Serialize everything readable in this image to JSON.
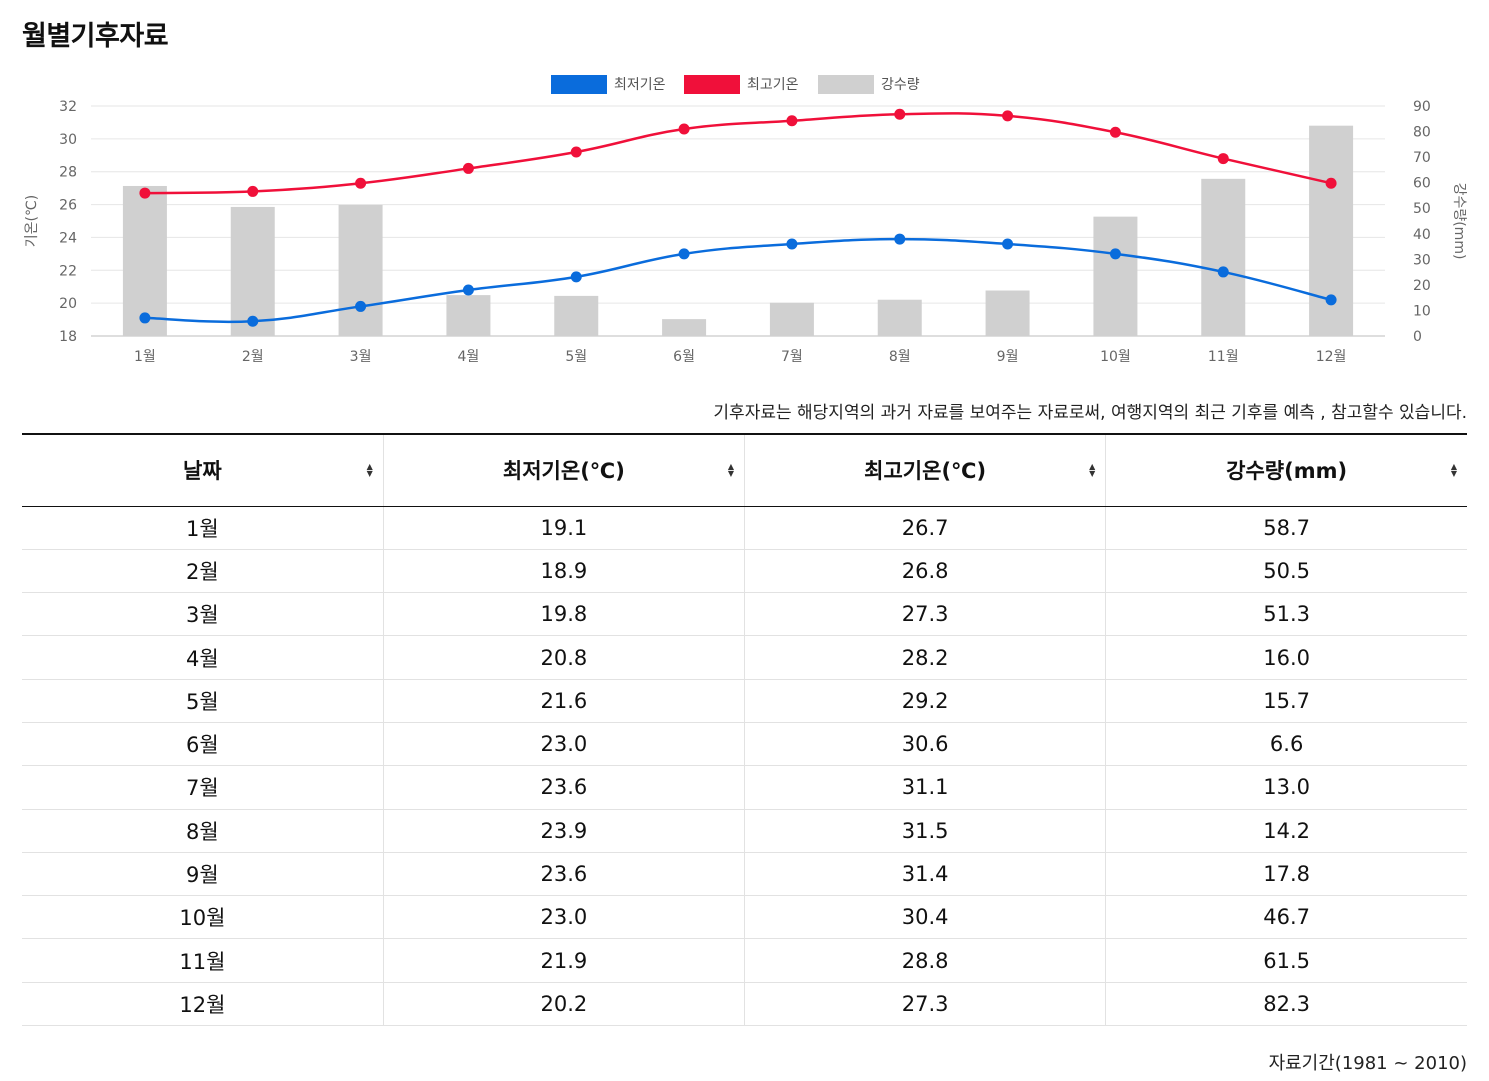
{
  "page": {
    "title": "월별기후자료",
    "note": "기후자료는 해당지역의 과거 자료를 보여주는 자료로써, 여행지역의 최근 기후를 예측 , 참고할수 있습니다.",
    "period": "자료기간(1981 ~ 2010)"
  },
  "chart_data": {
    "type": "bar+line",
    "categories": [
      "1월",
      "2월",
      "3월",
      "4월",
      "5월",
      "6월",
      "7월",
      "8월",
      "9월",
      "10월",
      "11월",
      "12월"
    ],
    "series": [
      {
        "name": "최저기온",
        "kind": "line",
        "axis": "left",
        "color": "#0a6cdc",
        "values": [
          19.1,
          18.9,
          19.8,
          20.8,
          21.6,
          23.0,
          23.6,
          23.9,
          23.6,
          23.0,
          21.9,
          20.2
        ]
      },
      {
        "name": "최고기온",
        "kind": "line",
        "axis": "left",
        "color": "#f0103a",
        "values": [
          26.7,
          26.8,
          27.3,
          28.2,
          29.2,
          30.6,
          31.1,
          31.5,
          31.4,
          30.4,
          28.8,
          27.3
        ]
      },
      {
        "name": "강수량",
        "kind": "bar",
        "axis": "right",
        "color": "#d0d0d0",
        "values": [
          58.7,
          50.5,
          51.3,
          16.0,
          15.7,
          6.6,
          13.0,
          14.2,
          17.8,
          46.7,
          61.5,
          82.3
        ]
      }
    ],
    "ylabel_left": "기온(℃)",
    "ylabel_right": "강수량(mm)",
    "ylim_left": [
      18,
      32
    ],
    "yticks_left": [
      18,
      20,
      22,
      24,
      26,
      28,
      30,
      32
    ],
    "ylim_right": [
      0,
      90
    ],
    "yticks_right": [
      0,
      10,
      20,
      30,
      40,
      50,
      60,
      70,
      80,
      90
    ],
    "legend": "top-center",
    "grid": true
  },
  "table": {
    "headers": [
      "날짜",
      "최저기온(℃)",
      "최고기온(℃)",
      "강수량(mm)"
    ],
    "rows": [
      [
        "1월",
        "19.1",
        "26.7",
        "58.7"
      ],
      [
        "2월",
        "18.9",
        "26.8",
        "50.5"
      ],
      [
        "3월",
        "19.8",
        "27.3",
        "51.3"
      ],
      [
        "4월",
        "20.8",
        "28.2",
        "16.0"
      ],
      [
        "5월",
        "21.6",
        "29.2",
        "15.7"
      ],
      [
        "6월",
        "23.0",
        "30.6",
        "6.6"
      ],
      [
        "7월",
        "23.6",
        "31.1",
        "13.0"
      ],
      [
        "8월",
        "23.9",
        "31.5",
        "14.2"
      ],
      [
        "9월",
        "23.6",
        "31.4",
        "17.8"
      ],
      [
        "10월",
        "23.0",
        "30.4",
        "46.7"
      ],
      [
        "11월",
        "21.9",
        "28.8",
        "61.5"
      ],
      [
        "12월",
        "20.2",
        "27.3",
        "82.3"
      ]
    ]
  }
}
